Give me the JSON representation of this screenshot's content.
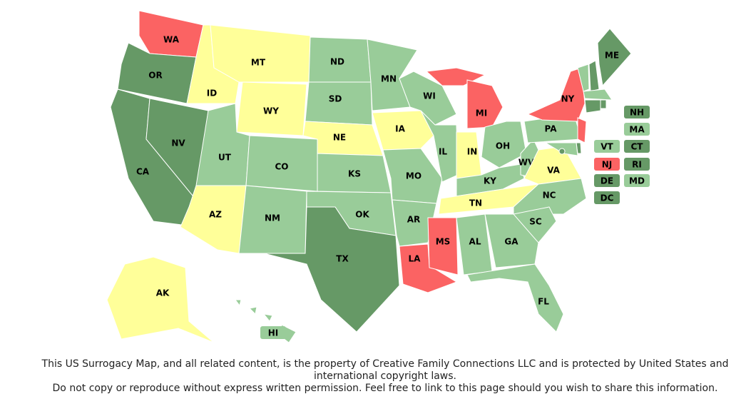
{
  "states": [
    {
      "abbr": "WA",
      "color": "#fb6363"
    },
    {
      "abbr": "OR",
      "color": "#669966"
    },
    {
      "abbr": "CA",
      "color": "#669966"
    },
    {
      "abbr": "NV",
      "color": "#669966"
    },
    {
      "abbr": "ID",
      "color": "#ffff99"
    },
    {
      "abbr": "MT",
      "color": "#ffff99"
    },
    {
      "abbr": "WY",
      "color": "#ffff99"
    },
    {
      "abbr": "UT",
      "color": "#99cc99"
    },
    {
      "abbr": "AZ",
      "color": "#ffff99"
    },
    {
      "abbr": "CO",
      "color": "#99cc99"
    },
    {
      "abbr": "NM",
      "color": "#99cc99"
    },
    {
      "abbr": "ND",
      "color": "#99cc99"
    },
    {
      "abbr": "SD",
      "color": "#99cc99"
    },
    {
      "abbr": "NE",
      "color": "#ffff99"
    },
    {
      "abbr": "KS",
      "color": "#99cc99"
    },
    {
      "abbr": "OK",
      "color": "#99cc99"
    },
    {
      "abbr": "TX",
      "color": "#669966"
    },
    {
      "abbr": "MN",
      "color": "#99cc99"
    },
    {
      "abbr": "IA",
      "color": "#ffff99"
    },
    {
      "abbr": "MO",
      "color": "#99cc99"
    },
    {
      "abbr": "AR",
      "color": "#99cc99"
    },
    {
      "abbr": "LA",
      "color": "#fb6363"
    },
    {
      "abbr": "MS",
      "color": "#fb6363"
    },
    {
      "abbr": "AL",
      "color": "#99cc99"
    },
    {
      "abbr": "WI",
      "color": "#99cc99"
    },
    {
      "abbr": "IL",
      "color": "#99cc99"
    },
    {
      "abbr": "IN",
      "color": "#ffff99"
    },
    {
      "abbr": "MI",
      "color": "#fb6363"
    },
    {
      "abbr": "OH",
      "color": "#99cc99"
    },
    {
      "abbr": "KY",
      "color": "#99cc99"
    },
    {
      "abbr": "TN",
      "color": "#ffff99"
    },
    {
      "abbr": "WV",
      "color": "#99cc99"
    },
    {
      "abbr": "VA",
      "color": "#ffff99"
    },
    {
      "abbr": "NC",
      "color": "#99cc99"
    },
    {
      "abbr": "SC",
      "color": "#99cc99"
    },
    {
      "abbr": "GA",
      "color": "#99cc99"
    },
    {
      "abbr": "FL",
      "color": "#99cc99"
    },
    {
      "abbr": "PA",
      "color": "#99cc99"
    },
    {
      "abbr": "NY",
      "color": "#fb6363"
    },
    {
      "abbr": "NJ",
      "color": "#fb6363"
    },
    {
      "abbr": "DE",
      "color": "#669966"
    },
    {
      "abbr": "MD",
      "color": "#99cc99"
    },
    {
      "abbr": "VT",
      "color": "#99cc99"
    },
    {
      "abbr": "NH",
      "color": "#669966"
    },
    {
      "abbr": "ME",
      "color": "#669966"
    },
    {
      "abbr": "MA",
      "color": "#99cc99"
    },
    {
      "abbr": "CT",
      "color": "#669966"
    },
    {
      "abbr": "RI",
      "color": "#669966"
    },
    {
      "abbr": "AK",
      "color": "#ffff99"
    },
    {
      "abbr": "HI",
      "color": "#99cc99"
    },
    {
      "abbr": "DC",
      "color": "#669966"
    }
  ],
  "footer": [
    "This US Surrogacy Map, and all related content, is the property of Creative Family Connections LLC and is protected by United States and international copyright laws.",
    "Do not copy or reproduce without express written permission. Feel free to link to this page should you wish to share this information."
  ]
}
